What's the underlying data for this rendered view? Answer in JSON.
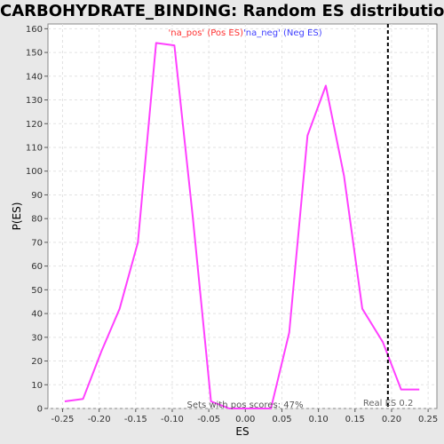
{
  "chart_data": {
    "type": "line",
    "title": "CARBOHYDRATE_BINDING: Random ES distribution",
    "xlabel": "ES",
    "ylabel": "P(ES)",
    "xlim": [
      -0.27,
      0.262
    ],
    "ylim": [
      0,
      162
    ],
    "x_ticks": [
      -0.25,
      -0.2,
      -0.15,
      -0.1,
      -0.05,
      0.0,
      0.05,
      0.1,
      0.15,
      0.2,
      0.25
    ],
    "x_tick_labels": [
      "-0.25",
      "-0.20",
      "-0.15",
      "-0.10",
      "-0.05",
      "0.00",
      "0.05",
      "0.10",
      "0.15",
      "0.20",
      "0.25"
    ],
    "y_ticks": [
      0,
      10,
      20,
      30,
      40,
      50,
      60,
      70,
      80,
      90,
      100,
      110,
      120,
      130,
      140,
      150,
      160
    ],
    "grid": true,
    "legend": [
      {
        "label": "'na_pos' (Pos ES)",
        "color": "#ff3030"
      },
      {
        "label": "'na_neg' (Neg ES)",
        "color": "#4040ff"
      }
    ],
    "series": [
      {
        "color": "#ff40ff",
        "x": [
          -0.247,
          -0.222,
          -0.197,
          -0.172,
          -0.147,
          -0.122,
          -0.097,
          -0.072,
          -0.047,
          -0.022,
          0.003,
          0.035,
          0.06,
          0.085,
          0.11,
          0.135,
          0.16,
          0.188,
          0.213,
          0.238
        ],
        "y": [
          3,
          4,
          24,
          42,
          70,
          154,
          153,
          81,
          3,
          0,
          0,
          0,
          32,
          115,
          136,
          98,
          42,
          28,
          8,
          8
        ]
      }
    ],
    "reference_line": {
      "x": 0.195,
      "label": "Real ES 0.2",
      "color": "#000000"
    },
    "annotations": [
      {
        "text": "Sets with pos scores: 47%"
      }
    ]
  }
}
